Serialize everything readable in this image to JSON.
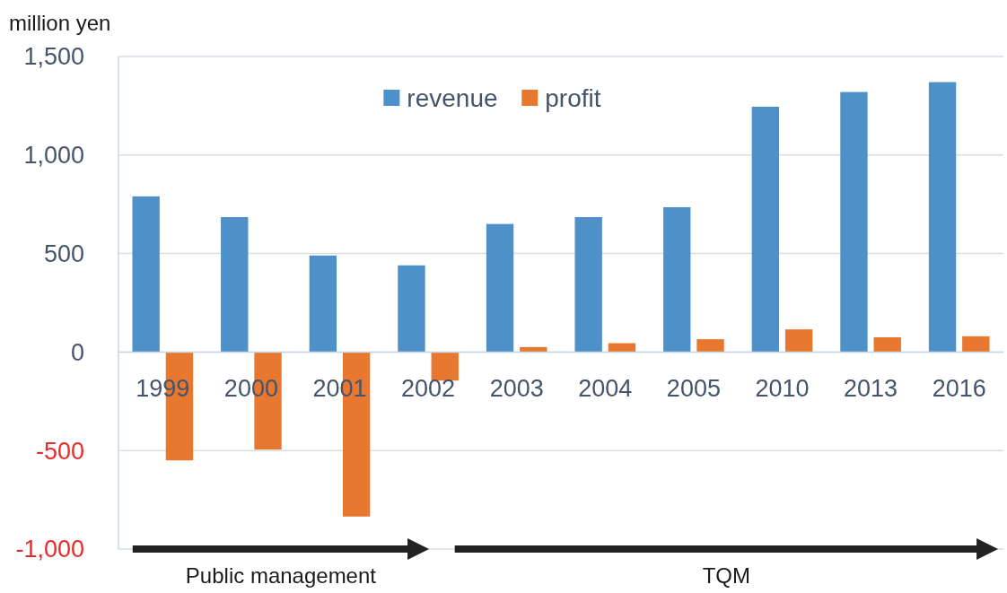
{
  "chart_data": {
    "type": "bar",
    "ylabel": "million yen",
    "categories": [
      "1999",
      "2000",
      "2001",
      "2002",
      "2003",
      "2004",
      "2005",
      "2010",
      "2013",
      "2016"
    ],
    "series": [
      {
        "name": "revenue",
        "color": "#4e91c9",
        "values": [
          790,
          685,
          490,
          440,
          650,
          685,
          735,
          1245,
          1320,
          1370
        ]
      },
      {
        "name": "profit",
        "color": "#e8772f",
        "values": [
          -550,
          -495,
          -835,
          -145,
          25,
          45,
          65,
          115,
          75,
          80
        ]
      }
    ],
    "ylim": [
      -1000,
      1500
    ],
    "yticks": [
      {
        "value": -1000,
        "label": "-1,000"
      },
      -500,
      0,
      500,
      {
        "value": 1000,
        "label": "1,000"
      },
      {
        "value": 1500,
        "label": "1,500"
      }
    ],
    "grid": "y",
    "legend": "top",
    "annotations": [
      "Public management",
      "TQM"
    ]
  }
}
